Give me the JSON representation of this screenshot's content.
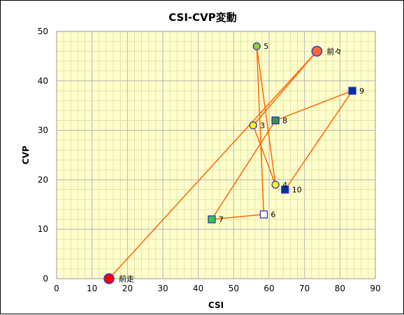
{
  "chart_data": {
    "type": "scatter",
    "title": "CSI-CVP変動",
    "xlabel": "CSI",
    "ylabel": "CVP",
    "xlim": [
      0,
      90
    ],
    "ylim": [
      0,
      50
    ],
    "x_ticks": [
      0,
      10,
      20,
      30,
      40,
      50,
      60,
      70,
      80,
      90
    ],
    "y_ticks": [
      0,
      10,
      20,
      30,
      40,
      50
    ],
    "grid": true,
    "plot_background": "#ffffcc",
    "line_color": "#ff6600",
    "points": [
      {
        "label": "前走",
        "x": 14.8,
        "y": 0,
        "marker": "circle",
        "fill": "#ff0000",
        "stroke": "#3333cc",
        "size": "large"
      },
      {
        "label": "前々",
        "x": 73.5,
        "y": 46,
        "marker": "circle",
        "fill": "#ff6633",
        "stroke": "#3333cc",
        "size": "large"
      },
      {
        "label": "3",
        "x": 55.5,
        "y": 31,
        "marker": "circle",
        "fill": "#ffff00",
        "stroke": "#3333cc",
        "size": "small"
      },
      {
        "label": "4",
        "x": 61.8,
        "y": 19,
        "marker": "circle",
        "fill": "#ffff00",
        "stroke": "#3333cc",
        "size": "small"
      },
      {
        "label": "5",
        "x": 56.5,
        "y": 47,
        "marker": "circle",
        "fill": "#99cc33",
        "stroke": "#3333cc",
        "size": "small"
      },
      {
        "label": "6",
        "x": 58.5,
        "y": 13,
        "marker": "square",
        "fill": "#ffffff",
        "stroke": "#3333cc",
        "size": "small"
      },
      {
        "label": "7",
        "x": 43.8,
        "y": 12,
        "marker": "square",
        "fill": "#33cc33",
        "stroke": "#3333cc",
        "size": "small"
      },
      {
        "label": "8",
        "x": 61.8,
        "y": 32,
        "marker": "square",
        "fill": "#339933",
        "stroke": "#3333cc",
        "size": "small"
      },
      {
        "label": "9",
        "x": 83.5,
        "y": 38,
        "marker": "square",
        "fill": "#003399",
        "stroke": "#3333cc",
        "size": "small"
      },
      {
        "label": "10",
        "x": 64.5,
        "y": 18,
        "marker": "square",
        "fill": "#003399",
        "stroke": "#3333cc",
        "size": "small"
      }
    ]
  }
}
